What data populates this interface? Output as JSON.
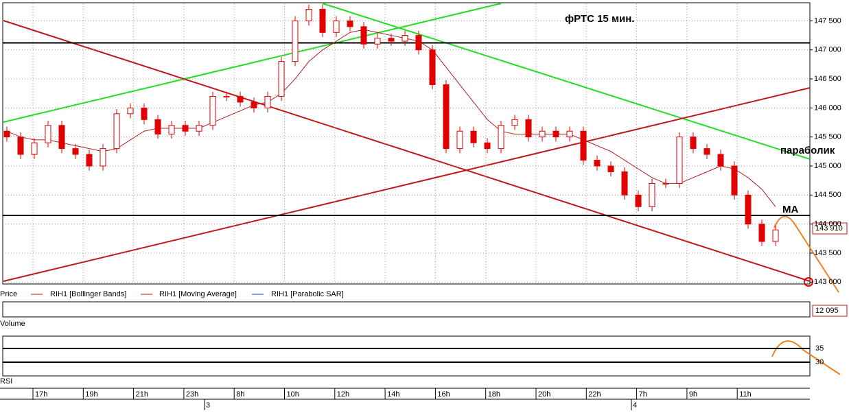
{
  "chart_data": {
    "type": "candlestick",
    "title": "фРТС  15 мин.",
    "annotations": [
      "параболик",
      "МА"
    ],
    "legend": [
      "Price",
      "RIH1 [Bollinger Bands]",
      "RIH1 [Moving Average]",
      "RIH1 [Parabolic SAR]"
    ],
    "panels": [
      "Volume",
      "RSI"
    ],
    "ylim": [
      142980,
      147800
    ],
    "yticks": [
      {
        "value": 143000,
        "label": "143 000"
      },
      {
        "value": 143500,
        "label": "143 500"
      },
      {
        "value": 144000,
        "label": "144 000"
      },
      {
        "value": 144500,
        "label": "144 500"
      },
      {
        "value": 145000,
        "label": "145 000"
      },
      {
        "value": 145500,
        "label": "145 500"
      },
      {
        "value": 146000,
        "label": "146 000"
      },
      {
        "value": 146500,
        "label": "146 500"
      },
      {
        "value": 147000,
        "label": "147 000"
      },
      {
        "value": 147500,
        "label": "147 500"
      }
    ],
    "grid": true,
    "last_price": {
      "value": 143910,
      "label": "143 910"
    },
    "volume_last": {
      "value": 12095,
      "label": "12 095"
    },
    "levels": [
      147120,
      144150
    ],
    "rsi_ylim": [
      25,
      39.5
    ],
    "rsi_yticks": [
      35,
      30
    ],
    "time_labels": [
      "17h",
      "19h",
      "21h",
      "23h",
      "8h",
      "10h",
      "12h",
      "14h",
      "16h",
      "18h",
      "20h",
      "22h",
      "7h",
      "9h",
      "11h"
    ],
    "date_labels": [
      "3",
      "4"
    ],
    "up_color": "#ffffff",
    "down_color": "#e00000",
    "candles": [
      [
        145600,
        145680,
        145420,
        145500
      ],
      [
        145500,
        145580,
        145120,
        145200
      ],
      [
        145200,
        145480,
        145120,
        145400
      ],
      [
        145400,
        145780,
        145320,
        145700
      ],
      [
        145700,
        145780,
        145220,
        145300
      ],
      [
        145300,
        145380,
        145120,
        145200
      ],
      [
        145200,
        145280,
        144920,
        145000
      ],
      [
        145000,
        145380,
        144920,
        145300
      ],
      [
        145300,
        145980,
        145220,
        145900
      ],
      [
        145900,
        146080,
        145820,
        146000
      ],
      [
        146000,
        146080,
        145720,
        145800
      ],
      [
        145800,
        145880,
        145470,
        145550
      ],
      [
        145550,
        145780,
        145470,
        145700
      ],
      [
        145700,
        145780,
        145520,
        145600
      ],
      [
        145600,
        145780,
        145520,
        145700
      ],
      [
        145700,
        146280,
        145620,
        146200
      ],
      [
        146200,
        146280,
        146120,
        146200
      ],
      [
        146200,
        146280,
        146020,
        146100
      ],
      [
        146100,
        146180,
        145920,
        146000
      ],
      [
        146000,
        146280,
        145920,
        146200
      ],
      [
        146200,
        146880,
        146120,
        146800
      ],
      [
        146800,
        147580,
        146720,
        147500
      ],
      [
        147500,
        147780,
        147420,
        147700
      ],
      [
        147700,
        147780,
        147220,
        147300
      ],
      [
        147300,
        147580,
        147220,
        147500
      ],
      [
        147500,
        147580,
        147320,
        147400
      ],
      [
        147400,
        147480,
        147020,
        147100
      ],
      [
        147100,
        147280,
        147020,
        147200
      ],
      [
        147200,
        147280,
        147070,
        147150
      ],
      [
        147150,
        147330,
        147070,
        147250
      ],
      [
        147250,
        147330,
        146920,
        147000
      ],
      [
        147000,
        147080,
        146320,
        146400
      ],
      [
        146400,
        146480,
        145220,
        145300
      ],
      [
        145300,
        145680,
        145220,
        145600
      ],
      [
        145600,
        145680,
        145320,
        145400
      ],
      [
        145400,
        145480,
        145220,
        145300
      ],
      [
        145300,
        145780,
        145220,
        145700
      ],
      [
        145700,
        145880,
        145620,
        145800
      ],
      [
        145800,
        145880,
        145420,
        145500
      ],
      [
        145500,
        145680,
        145420,
        145600
      ],
      [
        145600,
        145680,
        145420,
        145500
      ],
      [
        145500,
        145680,
        145420,
        145600
      ],
      [
        145600,
        145680,
        145020,
        145100
      ],
      [
        145100,
        145180,
        144920,
        145000
      ],
      [
        145000,
        145080,
        144820,
        144900
      ],
      [
        144900,
        144980,
        144420,
        144500
      ],
      [
        144500,
        144580,
        144220,
        144300
      ],
      [
        144300,
        144780,
        144220,
        144700
      ],
      [
        144700,
        144780,
        144620,
        144700
      ],
      [
        144700,
        145580,
        144620,
        145500
      ],
      [
        145500,
        145580,
        145220,
        145300
      ],
      [
        145300,
        145380,
        145120,
        145200
      ],
      [
        145200,
        145280,
        144920,
        145000
      ],
      [
        145000,
        145080,
        144420,
        144500
      ],
      [
        144500,
        144580,
        143920,
        144000
      ],
      [
        144000,
        144080,
        143620,
        143700
      ],
      [
        143700,
        143980,
        143620,
        143900
      ]
    ],
    "ma": {
      "color": "#b02020",
      "values": [
        145600,
        145500,
        145450,
        145450,
        145400,
        145350,
        145300,
        145250,
        145300,
        145450,
        145600,
        145650,
        145650,
        145650,
        145650,
        145750,
        145850,
        145950,
        146050,
        146100,
        146250,
        146500,
        146800,
        147000,
        147150,
        147300,
        147350,
        147300,
        147250,
        147200,
        147150,
        147000,
        146700,
        146400,
        146100,
        145800,
        145600,
        145550,
        145550,
        145550,
        145550,
        145550,
        145450,
        145350,
        145250,
        145100,
        144950,
        144800,
        144700,
        144700,
        144800,
        144900,
        145000,
        144950,
        144800,
        144600,
        144300
      ]
    }
  }
}
